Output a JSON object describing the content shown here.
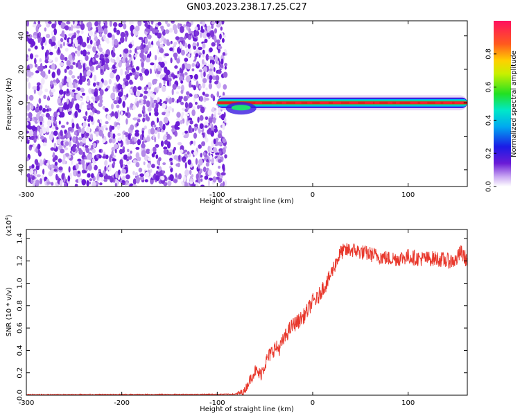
{
  "title": "GN03.2023.238.17.25.C27",
  "chart_data": [
    {
      "type": "heatmap",
      "name": "spectrogram",
      "xlabel": "Height of straight line (km)",
      "ylabel": "Frequency (Hz)",
      "xlim": [
        -300,
        162
      ],
      "ylim": [
        -50,
        49
      ],
      "xticks": [
        -300,
        -200,
        -100,
        0,
        100
      ],
      "yticks": [
        40,
        20,
        0,
        -20,
        -40
      ],
      "noise_region": {
        "x_start": -300,
        "x_end": -91,
        "description": "broadband noise"
      },
      "signal_band": {
        "x_start": -100,
        "x_end": 162,
        "center_hz": 0,
        "half_width_hz": 3
      },
      "colorbar": {
        "label": "Normalized spectral amplitude",
        "range": [
          0.0,
          1.0
        ],
        "ticks": [
          "0.0",
          "0.2",
          "0.4",
          "0.6",
          "0.8"
        ]
      }
    },
    {
      "type": "line",
      "name": "snr",
      "xlabel": "Height of straight line (km)",
      "ylabel": "SNR (10 * v/v)",
      "multiplier": "(x10",
      "multiplier_exp": "4",
      "xlim": [
        -300,
        162
      ],
      "ylim": [
        0.0,
        1.48
      ],
      "xticks": [
        -300,
        -200,
        -100,
        0,
        100
      ],
      "yticks": [
        "0.0",
        "0.2",
        "0.4",
        "0.6",
        "0.8",
        "1.0",
        "1.2",
        "1.4"
      ],
      "line_color": "#e8382c",
      "series": [
        {
          "name": "SNR",
          "x": [
            -300,
            -260,
            -220,
            -180,
            -140,
            -100,
            -80,
            -72,
            -65,
            -60,
            -55,
            -50,
            -45,
            -40,
            -35,
            -30,
            -25,
            -20,
            -15,
            -10,
            -5,
            0,
            5,
            10,
            15,
            20,
            25,
            30,
            40,
            50,
            60,
            70,
            80,
            90,
            100,
            110,
            120,
            130,
            140,
            150,
            155,
            162
          ],
          "y": [
            0.005,
            0.005,
            0.006,
            0.006,
            0.007,
            0.008,
            0.01,
            0.03,
            0.15,
            0.22,
            0.18,
            0.28,
            0.36,
            0.42,
            0.42,
            0.5,
            0.58,
            0.63,
            0.66,
            0.7,
            0.76,
            0.84,
            0.86,
            0.95,
            1.0,
            1.1,
            1.2,
            1.28,
            1.3,
            1.28,
            1.26,
            1.24,
            1.22,
            1.22,
            1.24,
            1.22,
            1.22,
            1.22,
            1.2,
            1.2,
            1.28,
            1.2
          ],
          "noise_amplitude": 0.07
        }
      ]
    }
  ]
}
